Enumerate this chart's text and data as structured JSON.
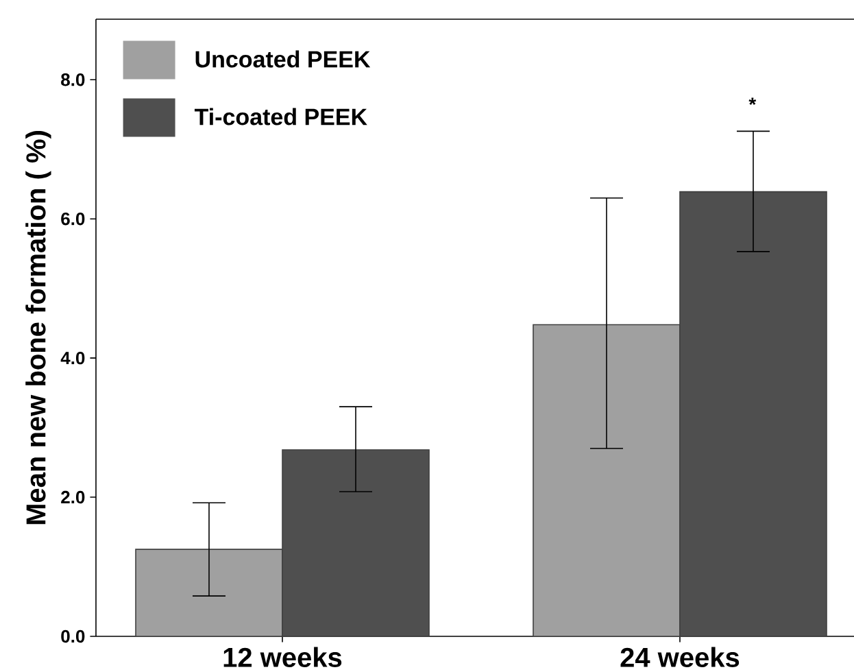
{
  "chart_data": {
    "type": "bar",
    "ylabel": "Mean new bone formation ( %)",
    "categories": [
      "12 weeks",
      "24 weeks"
    ],
    "series": [
      {
        "name": "Uncoated PEEK",
        "color": "#a0a0a0",
        "values": [
          1.25,
          4.48
        ],
        "errors": [
          [
            0.58,
            1.92
          ],
          [
            2.7,
            6.3
          ]
        ]
      },
      {
        "name": "Ti-coated PEEK",
        "color": "#4f4f4f",
        "values": [
          2.68,
          6.39
        ],
        "errors": [
          [
            2.08,
            3.3
          ],
          [
            5.53,
            7.26
          ]
        ]
      }
    ],
    "ylim": [
      0,
      8.87
    ],
    "yticks": [
      {
        "value": 0,
        "label": "0.0"
      },
      {
        "value": 2,
        "label": "2.0"
      },
      {
        "value": 4,
        "label": "4.0"
      },
      {
        "value": 6,
        "label": "6.0"
      },
      {
        "value": 8,
        "label": "8.0"
      }
    ],
    "legend": "top left",
    "grid": false,
    "annotations": [
      "*"
    ]
  }
}
